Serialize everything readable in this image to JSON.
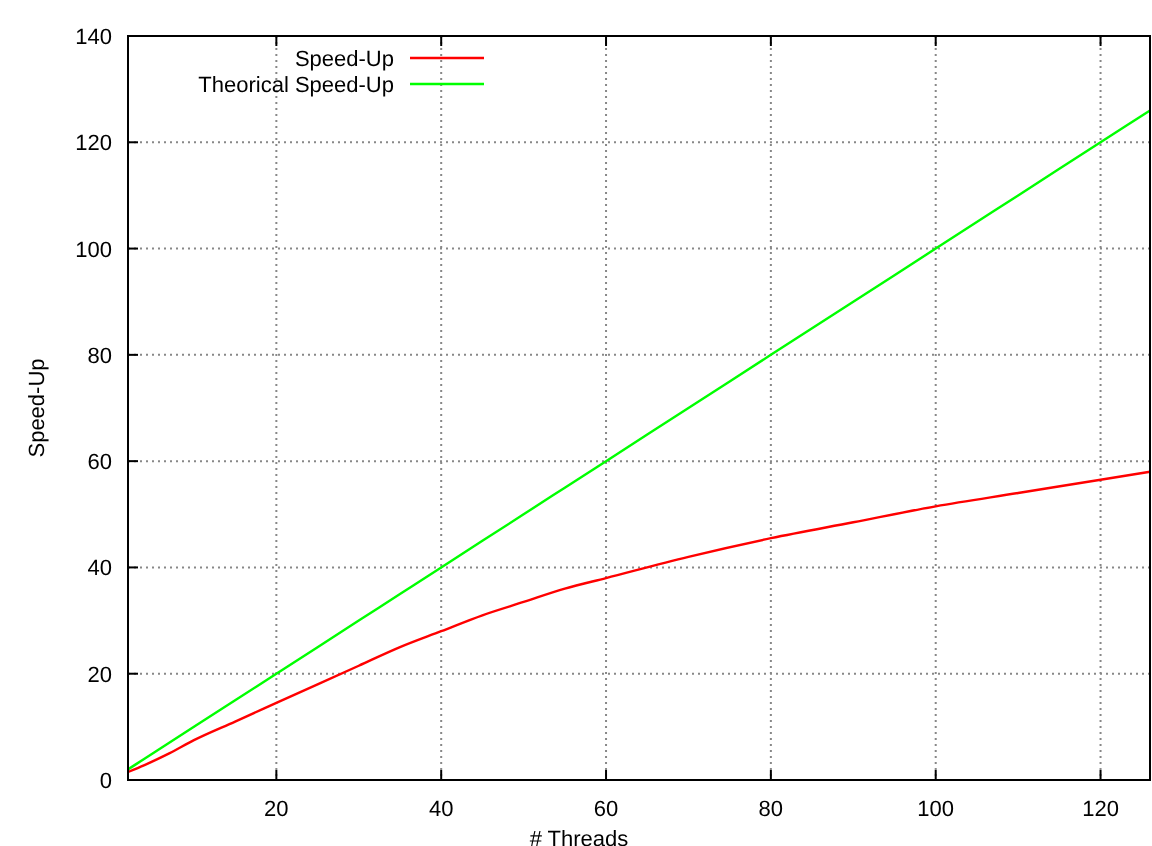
{
  "chart_data": {
    "type": "line",
    "xlabel": "# Threads",
    "ylabel": "Speed-Up",
    "x": [
      2,
      4,
      7,
      10,
      15,
      20,
      25,
      30,
      35,
      40,
      45,
      50,
      55,
      60,
      70,
      80,
      90,
      100,
      110,
      120,
      126
    ],
    "series": [
      {
        "name": "Speed-Up",
        "color": "#ff0000",
        "values": [
          1.5,
          2.8,
          5,
          7.5,
          11,
          14.5,
          18,
          21.5,
          25,
          28,
          31,
          33.5,
          36,
          38,
          42,
          45.5,
          48.5,
          51.5,
          54,
          56.5,
          58
        ]
      },
      {
        "name": "Theorical Speed-Up",
        "color": "#00ff00",
        "values": [
          2,
          4,
          7,
          10,
          15,
          20,
          25,
          30,
          35,
          40,
          45,
          50,
          55,
          60,
          70,
          80,
          90,
          100,
          110,
          120,
          126
        ]
      }
    ],
    "xlim": [
      2,
      126
    ],
    "ylim": [
      0,
      140
    ],
    "xticks": [
      20,
      40,
      60,
      80,
      100,
      120
    ],
    "yticks": [
      0,
      20,
      40,
      60,
      80,
      100,
      120,
      140
    ],
    "grid": true,
    "legend": "top left",
    "line_style": "solid",
    "marker": "none"
  }
}
